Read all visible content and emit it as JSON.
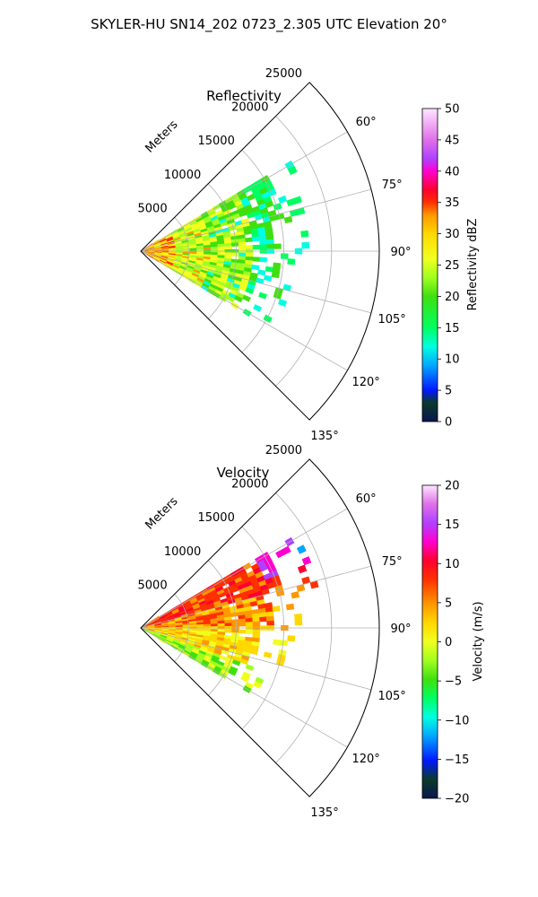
{
  "figure": {
    "title": "SKYLER-HU  SN14_202  0723_2.305 UTC Elevation 20°"
  },
  "chart_data": [
    {
      "type": "heatmap",
      "title": "Reflectivity",
      "radial_label": "Meters",
      "radial_ticks": [
        "5000",
        "10000",
        "15000",
        "20000",
        "25000"
      ],
      "radial_tick_values": [
        5000,
        10000,
        15000,
        20000,
        25000
      ],
      "angle_ticks": [
        "60°",
        "75°",
        "90°",
        "105°",
        "120°",
        "135°"
      ],
      "angle_tick_values": [
        60,
        75,
        90,
        105,
        120,
        135
      ],
      "angle_range": [
        45,
        135
      ],
      "range_max": 25000,
      "colorbar": {
        "label": "Reflectivity dBZ",
        "ticks": [
          "0",
          "5",
          "10",
          "15",
          "20",
          "25",
          "30",
          "35",
          "40",
          "45",
          "50"
        ],
        "range": [
          0,
          50
        ]
      }
    },
    {
      "type": "heatmap",
      "title": "Velocity",
      "radial_label": "Meters",
      "radial_ticks": [
        "5000",
        "10000",
        "15000",
        "20000",
        "25000"
      ],
      "radial_tick_values": [
        5000,
        10000,
        15000,
        20000,
        25000
      ],
      "angle_ticks": [
        "60°",
        "75°",
        "90°",
        "105°",
        "120°",
        "135°"
      ],
      "angle_tick_values": [
        60,
        75,
        90,
        105,
        120,
        135
      ],
      "angle_range": [
        45,
        135
      ],
      "range_max": 25000,
      "colorbar": {
        "label": "Velocity (m/s)",
        "ticks": [
          "20",
          "15",
          "10",
          "5",
          "0",
          "−5",
          "−10",
          "−15",
          "−20"
        ],
        "range": [
          -20,
          20
        ]
      }
    }
  ]
}
